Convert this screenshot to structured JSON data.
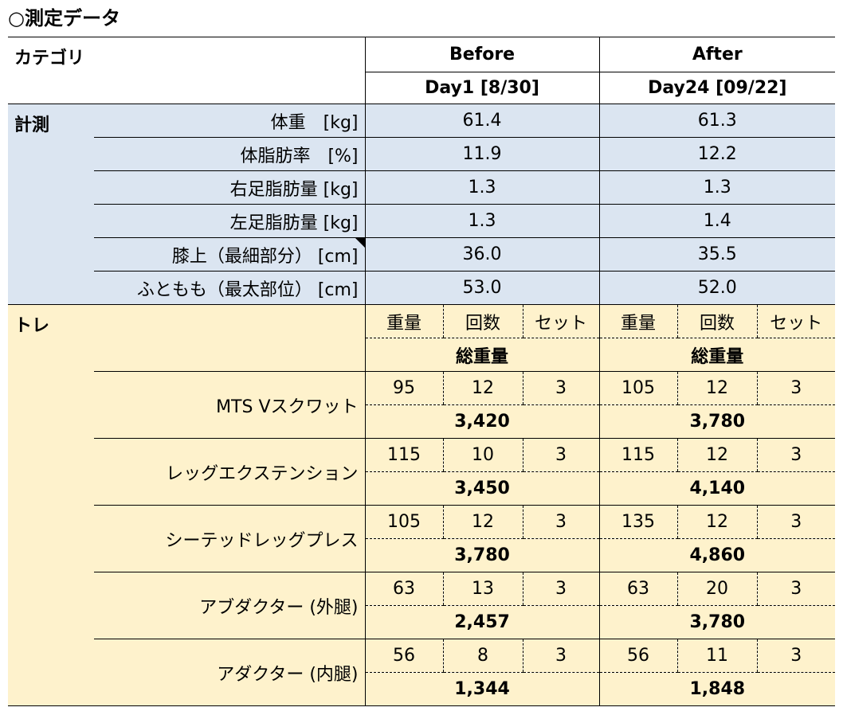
{
  "title": "○測定データ",
  "table": {
    "header": {
      "category": "カテゴリ",
      "before": "Before",
      "after": "After",
      "before_day": "Day1 [8/30]",
      "after_day": "Day24 [09/22]"
    },
    "measurement": {
      "label": "計測",
      "rows": [
        [
          "体重　[kg]",
          "61.4",
          "61.3"
        ],
        [
          "体脂肪率　[%]",
          "11.9",
          "12.2"
        ],
        [
          "右足脂肪量 [kg]",
          "1.3",
          "1.3"
        ],
        [
          "左足脂肪量 [kg]",
          "1.3",
          "1.4"
        ],
        [
          "膝上（最細部分） [cm]",
          "36.0",
          "35.5"
        ],
        [
          "ふともも（最太部位） [cm]",
          "53.0",
          "52.0"
        ]
      ]
    },
    "training": {
      "label": "トレ",
      "subheaders": [
        "重量",
        "回数",
        "セット"
      ],
      "total_label": "総重量",
      "rows": [
        {
          "name": "MTS Vスクワット",
          "before": [
            "95",
            "12",
            "3"
          ],
          "before_total": "3,420",
          "after": [
            "105",
            "12",
            "3"
          ],
          "after_total": "3,780"
        },
        {
          "name": "レッグエクステンション",
          "before": [
            "115",
            "10",
            "3"
          ],
          "before_total": "3,450",
          "after": [
            "115",
            "12",
            "3"
          ],
          "after_total": "4,140"
        },
        {
          "name": "シーテッドレッグプレス",
          "before": [
            "105",
            "12",
            "3"
          ],
          "before_total": "3,780",
          "after": [
            "135",
            "12",
            "3"
          ],
          "after_total": "4,860"
        },
        {
          "name": "アブダクター (外腿)",
          "before": [
            "63",
            "13",
            "3"
          ],
          "before_total": "2,457",
          "after": [
            "63",
            "20",
            "3"
          ],
          "after_total": "3,780"
        },
        {
          "name": "アダクター (内腿)",
          "before": [
            "56",
            "8",
            "3"
          ],
          "before_total": "1,344",
          "after": [
            "56",
            "11",
            "3"
          ],
          "after_total": "1,848"
        }
      ]
    }
  }
}
